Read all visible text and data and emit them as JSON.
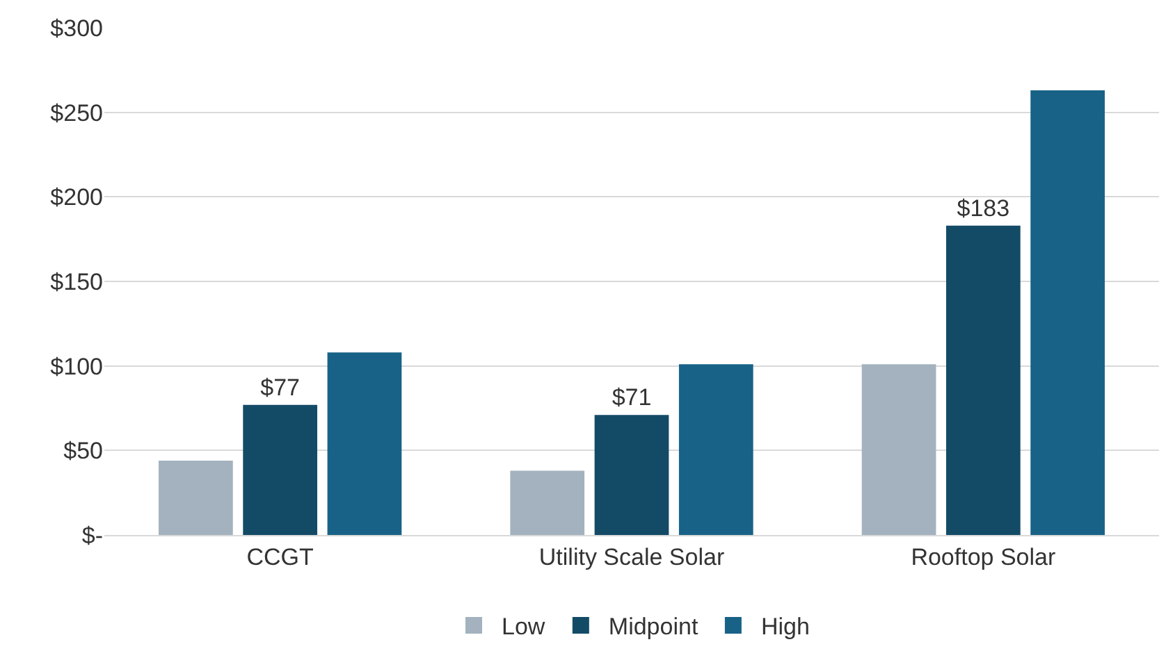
{
  "chart_data": {
    "type": "bar",
    "categories": [
      "CCGT",
      "Utility Scale Solar",
      "Rooftop Solar"
    ],
    "series": [
      {
        "name": "Low",
        "color": "#a3b2be",
        "values": [
          44,
          38,
          101
        ]
      },
      {
        "name": "Midpoint",
        "color": "#134b67",
        "values": [
          77,
          71,
          183
        ],
        "value_labels": [
          "$77",
          "$71",
          "$183"
        ]
      },
      {
        "name": "High",
        "color": "#186287",
        "values": [
          108,
          101,
          263
        ]
      }
    ],
    "ylim": [
      0,
      300
    ],
    "yticks": [
      {
        "value": 0,
        "label": "$-"
      },
      {
        "value": 50,
        "label": "$50"
      },
      {
        "value": 100,
        "label": "$100"
      },
      {
        "value": 150,
        "label": "$150"
      },
      {
        "value": 200,
        "label": "$200"
      },
      {
        "value": 250,
        "label": "$250"
      },
      {
        "value": 300,
        "label": "$300"
      }
    ],
    "grid": "y",
    "legend": "bottom"
  }
}
